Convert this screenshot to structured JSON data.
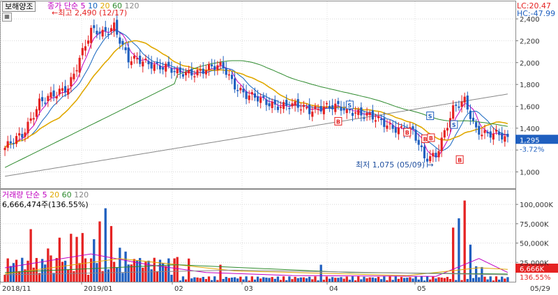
{
  "stock_name": "보해양조",
  "price_legend": {
    "label": "종가",
    "ma_type": "단순",
    "periods": [
      {
        "label": "5",
        "color": "#c000c0"
      },
      {
        "label": "10",
        "color": "#1565c0"
      },
      {
        "label": "20",
        "color": "#e0a800"
      },
      {
        "label": "60",
        "color": "#2e8b2e"
      },
      {
        "label": "120",
        "color": "#888888"
      }
    ]
  },
  "volume_legend": {
    "label": "거래량",
    "ma_type": "단순",
    "periods": [
      {
        "label": "5",
        "color": "#c000c0"
      },
      {
        "label": "20",
        "color": "#e0a800"
      },
      {
        "label": "60",
        "color": "#2e8b2e"
      },
      {
        "label": "120",
        "color": "#888888"
      }
    ]
  },
  "volume_info": "6,666,474주(136.55%)",
  "lc_text": "LC:20.47",
  "hc_text": "HC:-47.99",
  "colors": {
    "up": "#e52222",
    "down": "#1f5fbf",
    "price_badge": "#1f5fbf",
    "volume_badge": "#e52222"
  },
  "chart_data": [
    {
      "type": "candlestick",
      "ylim": [
        850,
        2560
      ],
      "y_ticks": [
        1000,
        1200,
        1400,
        1600,
        1800,
        2000,
        2200,
        2400
      ],
      "y_tick_labels": [
        "1,000",
        "",
        "1,400",
        "1,600",
        "1,800",
        "2,000",
        "2,200",
        "2,400"
      ],
      "x_labels": [
        "2018/11",
        "2019/01",
        "02",
        "03",
        "04",
        "05",
        "05/29"
      ],
      "current_price": "1,295",
      "change_pct": "-3.72%",
      "high_annotation": "최고 2,490 (12/17)",
      "low_annotation": "최저 1,075 (05/09)",
      "signals": [
        "B",
        "S",
        "B",
        "S",
        "B",
        "B",
        "S",
        "B"
      ]
    },
    {
      "type": "bar",
      "ylim": [
        0,
        110000
      ],
      "y_ticks": [
        25000,
        50000,
        75000,
        100000
      ],
      "y_tick_labels": [
        "25,000K",
        "50,000K",
        "75,000K",
        "100,000K"
      ],
      "current_volume": "6,666K",
      "current_pct": "136.55%"
    }
  ]
}
